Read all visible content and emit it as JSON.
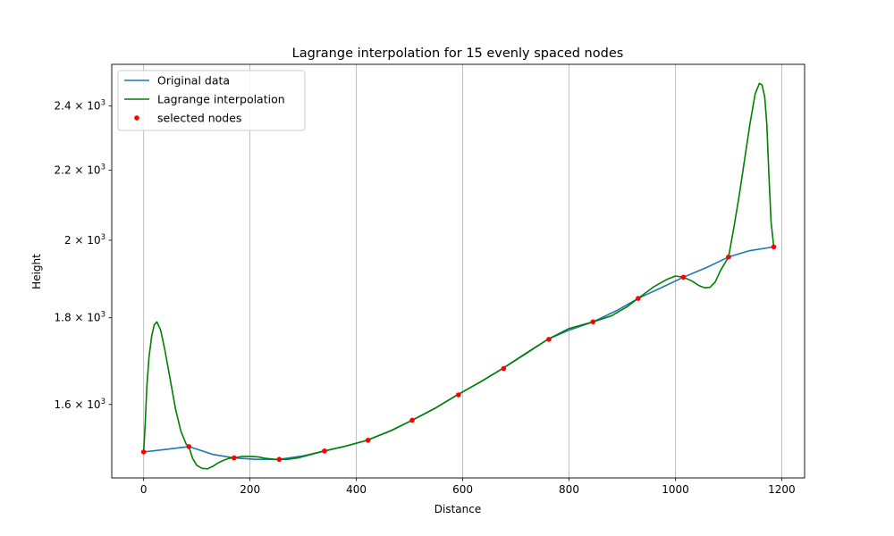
{
  "chart_data": {
    "type": "line",
    "title": "Lagrange interpolation for 15 evenly spaced nodes",
    "xlabel": "Distance",
    "ylabel": "Height",
    "xlim": [
      -60,
      1243
    ],
    "ylim": [
      1448,
      2540
    ],
    "yscale": "log",
    "grid": "x-only",
    "legend_position": "top-left",
    "x_ticks": [
      0,
      200,
      400,
      600,
      800,
      1000,
      1200
    ],
    "x_tick_labels": [
      "0",
      "200",
      "400",
      "600",
      "800",
      "1000",
      "1200"
    ],
    "y_ticks": [
      1600,
      1800,
      2000,
      2200,
      2400
    ],
    "y_tick_labels": [
      {
        "mantissa": "1.6",
        "base": "10",
        "exp": "3"
      },
      {
        "mantissa": "1.8",
        "base": "10",
        "exp": "3"
      },
      {
        "mantissa": "2",
        "base": "10",
        "exp": "3"
      },
      {
        "mantissa": "2.2",
        "base": "10",
        "exp": "3"
      },
      {
        "mantissa": "2.4",
        "base": "10",
        "exp": "3"
      }
    ],
    "y_tick_mult": "×",
    "series": [
      {
        "name": "Original data",
        "kind": "line",
        "color": "#1f77b4",
        "points": [
          [
            0,
            1500
          ],
          [
            40,
            1505
          ],
          [
            85,
            1511
          ],
          [
            130,
            1495
          ],
          [
            170,
            1488
          ],
          [
            210,
            1485
          ],
          [
            255,
            1485
          ],
          [
            300,
            1492
          ],
          [
            340,
            1502
          ],
          [
            380,
            1512
          ],
          [
            420,
            1524
          ],
          [
            465,
            1544
          ],
          [
            505,
            1566
          ],
          [
            550,
            1593
          ],
          [
            590,
            1621
          ],
          [
            635,
            1651
          ],
          [
            675,
            1680
          ],
          [
            720,
            1715
          ],
          [
            760,
            1748
          ],
          [
            800,
            1770
          ],
          [
            845,
            1790
          ],
          [
            890,
            1818
          ],
          [
            930,
            1848
          ],
          [
            975,
            1876
          ],
          [
            1015,
            1902
          ],
          [
            1060,
            1928
          ],
          [
            1100,
            1955
          ],
          [
            1140,
            1972
          ],
          [
            1185,
            1982
          ]
        ]
      },
      {
        "name": "Lagrange interpolation",
        "kind": "line",
        "color": "#008000",
        "points": [
          [
            0,
            1500
          ],
          [
            3,
            1560
          ],
          [
            6,
            1640
          ],
          [
            10,
            1705
          ],
          [
            15,
            1755
          ],
          [
            20,
            1783
          ],
          [
            25,
            1790
          ],
          [
            32,
            1770
          ],
          [
            40,
            1722
          ],
          [
            50,
            1655
          ],
          [
            60,
            1590
          ],
          [
            70,
            1543
          ],
          [
            80,
            1516
          ],
          [
            85,
            1511
          ],
          [
            92,
            1487
          ],
          [
            100,
            1473
          ],
          [
            110,
            1467
          ],
          [
            120,
            1466
          ],
          [
            130,
            1471
          ],
          [
            140,
            1478
          ],
          [
            150,
            1483
          ],
          [
            160,
            1487
          ],
          [
            170,
            1488
          ],
          [
            185,
            1491
          ],
          [
            200,
            1491
          ],
          [
            215,
            1490
          ],
          [
            230,
            1487
          ],
          [
            245,
            1485
          ],
          [
            255,
            1485
          ],
          [
            270,
            1485
          ],
          [
            290,
            1488
          ],
          [
            315,
            1495
          ],
          [
            340,
            1502
          ],
          [
            380,
            1512
          ],
          [
            420,
            1524
          ],
          [
            465,
            1544
          ],
          [
            505,
            1566
          ],
          [
            550,
            1593
          ],
          [
            590,
            1621
          ],
          [
            635,
            1651
          ],
          [
            675,
            1680
          ],
          [
            720,
            1716
          ],
          [
            760,
            1748
          ],
          [
            800,
            1774
          ],
          [
            845,
            1790
          ],
          [
            880,
            1805
          ],
          [
            910,
            1828
          ],
          [
            930,
            1848
          ],
          [
            960,
            1878
          ],
          [
            985,
            1897
          ],
          [
            1000,
            1905
          ],
          [
            1015,
            1902
          ],
          [
            1030,
            1893
          ],
          [
            1045,
            1880
          ],
          [
            1055,
            1875
          ],
          [
            1065,
            1876
          ],
          [
            1075,
            1890
          ],
          [
            1085,
            1920
          ],
          [
            1100,
            1955
          ],
          [
            1110,
            2035
          ],
          [
            1120,
            2125
          ],
          [
            1130,
            2230
          ],
          [
            1140,
            2340
          ],
          [
            1150,
            2440
          ],
          [
            1158,
            2475
          ],
          [
            1163,
            2470
          ],
          [
            1168,
            2430
          ],
          [
            1172,
            2340
          ],
          [
            1176,
            2180
          ],
          [
            1180,
            2050
          ],
          [
            1185,
            1982
          ]
        ]
      },
      {
        "name": "selected nodes",
        "kind": "scatter",
        "color": "#ff0000",
        "points": [
          [
            0,
            1500
          ],
          [
            85,
            1511
          ],
          [
            170,
            1488
          ],
          [
            255,
            1485
          ],
          [
            340,
            1502
          ],
          [
            422,
            1524
          ],
          [
            505,
            1566
          ],
          [
            592,
            1621
          ],
          [
            677,
            1680
          ],
          [
            762,
            1748
          ],
          [
            845,
            1790
          ],
          [
            930,
            1848
          ],
          [
            1015,
            1902
          ],
          [
            1100,
            1955
          ],
          [
            1185,
            1982
          ]
        ]
      }
    ]
  }
}
